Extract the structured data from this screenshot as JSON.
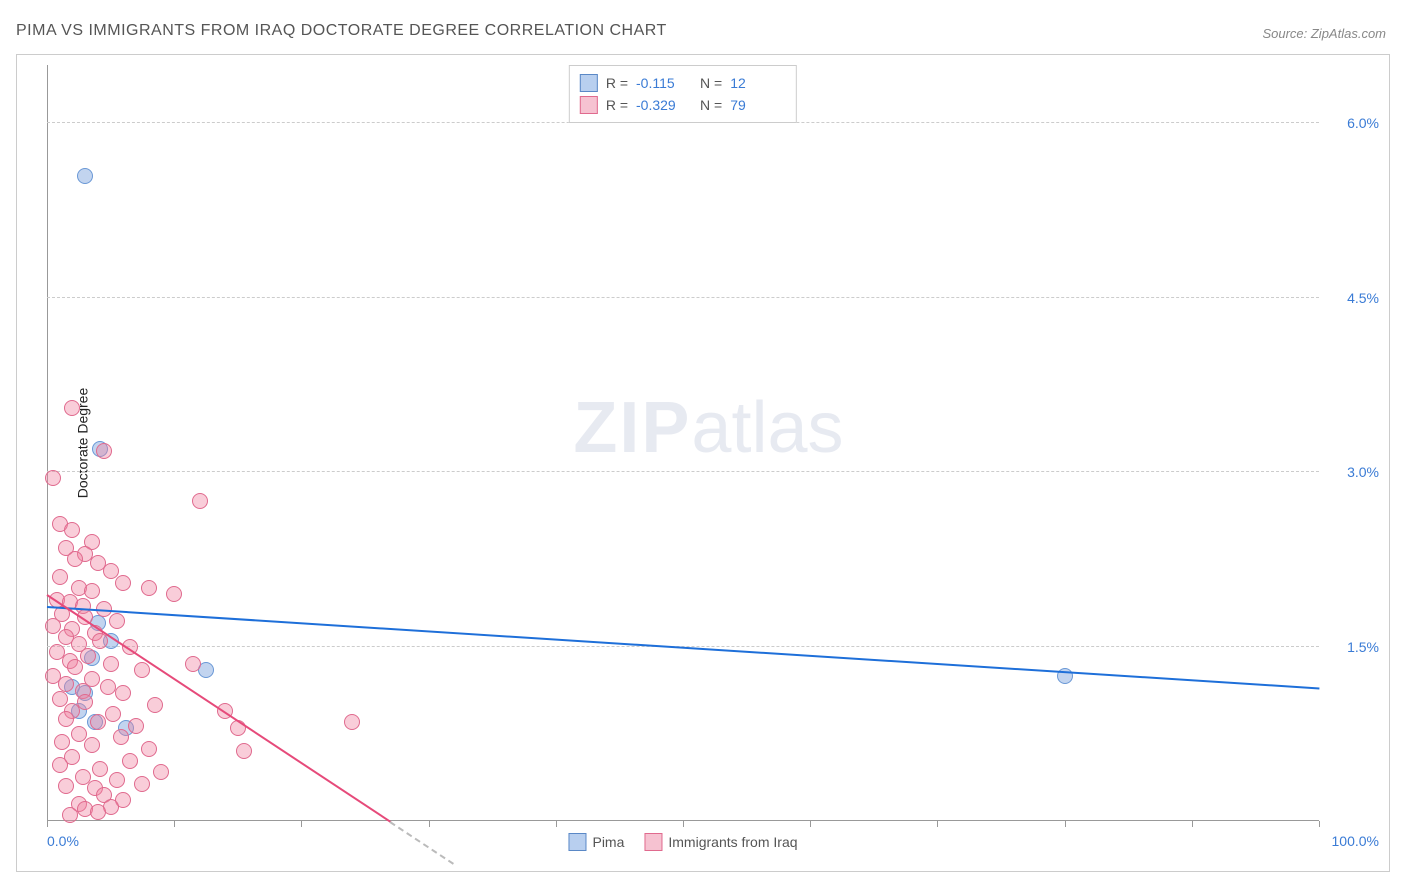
{
  "title": "PIMA VS IMMIGRANTS FROM IRAQ DOCTORATE DEGREE CORRELATION CHART",
  "source_label": "Source: ZipAtlas.com",
  "watermark": {
    "bold": "ZIP",
    "rest": "atlas"
  },
  "chart": {
    "type": "scatter",
    "y_label": "Doctorate Degree",
    "background_color": "#ffffff",
    "grid_color": "#cccccc",
    "grid_dash": true,
    "xlim": [
      0,
      100
    ],
    "ylim": [
      0,
      6.5
    ],
    "x_ticks_minor": [
      0,
      10,
      20,
      30,
      40,
      50,
      60,
      70,
      80,
      90,
      100
    ],
    "x_tick_labels": {
      "left": "0.0%",
      "right": "100.0%"
    },
    "y_ticks": [
      {
        "v": 1.5,
        "label": "1.5%"
      },
      {
        "v": 3.0,
        "label": "3.0%"
      },
      {
        "v": 4.5,
        "label": "4.5%"
      },
      {
        "v": 6.0,
        "label": "6.0%"
      }
    ],
    "y_tick_color": "#3a7bd5",
    "x_tick_color": "#3a7bd5",
    "point_radius": 8,
    "point_opacity": 0.55,
    "axis_color": "#999999"
  },
  "series": [
    {
      "key": "pima",
      "label": "Pima",
      "color_fill": "rgba(120,160,220,0.45)",
      "color_stroke": "#6a98d6",
      "swatch_fill": "#b8cfef",
      "swatch_stroke": "#5a88c6",
      "trend": {
        "x1": 0,
        "y1": 1.85,
        "x2": 100,
        "y2": 1.15,
        "color": "#1e6fd9",
        "width": 2
      },
      "R": "-0.115",
      "N": "12",
      "points": [
        {
          "x": 3.0,
          "y": 5.55
        },
        {
          "x": 4.2,
          "y": 3.2
        },
        {
          "x": 5.0,
          "y": 1.55
        },
        {
          "x": 2.0,
          "y": 1.15
        },
        {
          "x": 3.0,
          "y": 1.1
        },
        {
          "x": 3.8,
          "y": 0.85
        },
        {
          "x": 6.2,
          "y": 0.8
        },
        {
          "x": 12.5,
          "y": 1.3
        },
        {
          "x": 2.5,
          "y": 0.95
        },
        {
          "x": 4.0,
          "y": 1.7
        },
        {
          "x": 80.0,
          "y": 1.25
        },
        {
          "x": 3.5,
          "y": 1.4
        }
      ]
    },
    {
      "key": "iraq",
      "label": "Immigrants from Iraq",
      "color_fill": "rgba(240,130,160,0.40)",
      "color_stroke": "#e06a8e",
      "swatch_fill": "#f6c2d1",
      "swatch_stroke": "#e06a8e",
      "trend": {
        "x1": 0,
        "y1": 1.95,
        "x2": 27,
        "y2": 0.0,
        "color": "#e64a7a",
        "width": 2,
        "dash_to_x": 32
      },
      "R": "-0.329",
      "N": "79",
      "points": [
        {
          "x": 2.0,
          "y": 3.55
        },
        {
          "x": 0.5,
          "y": 2.95
        },
        {
          "x": 4.5,
          "y": 3.18
        },
        {
          "x": 12.0,
          "y": 2.75
        },
        {
          "x": 1.0,
          "y": 2.55
        },
        {
          "x": 2.0,
          "y": 2.5
        },
        {
          "x": 3.5,
          "y": 2.4
        },
        {
          "x": 1.5,
          "y": 2.35
        },
        {
          "x": 3.0,
          "y": 2.3
        },
        {
          "x": 2.2,
          "y": 2.25
        },
        {
          "x": 4.0,
          "y": 2.22
        },
        {
          "x": 5.0,
          "y": 2.15
        },
        {
          "x": 1.0,
          "y": 2.1
        },
        {
          "x": 6.0,
          "y": 2.05
        },
        {
          "x": 2.5,
          "y": 2.0
        },
        {
          "x": 3.5,
          "y": 1.98
        },
        {
          "x": 8.0,
          "y": 2.0
        },
        {
          "x": 10.0,
          "y": 1.95
        },
        {
          "x": 0.8,
          "y": 1.9
        },
        {
          "x": 1.8,
          "y": 1.88
        },
        {
          "x": 2.8,
          "y": 1.85
        },
        {
          "x": 4.5,
          "y": 1.82
        },
        {
          "x": 1.2,
          "y": 1.78
        },
        {
          "x": 3.0,
          "y": 1.75
        },
        {
          "x": 5.5,
          "y": 1.72
        },
        {
          "x": 0.5,
          "y": 1.68
        },
        {
          "x": 2.0,
          "y": 1.65
        },
        {
          "x": 3.8,
          "y": 1.62
        },
        {
          "x": 1.5,
          "y": 1.58
        },
        {
          "x": 4.2,
          "y": 1.55
        },
        {
          "x": 2.5,
          "y": 1.52
        },
        {
          "x": 6.5,
          "y": 1.5
        },
        {
          "x": 0.8,
          "y": 1.45
        },
        {
          "x": 3.2,
          "y": 1.42
        },
        {
          "x": 1.8,
          "y": 1.38
        },
        {
          "x": 5.0,
          "y": 1.35
        },
        {
          "x": 2.2,
          "y": 1.32
        },
        {
          "x": 7.5,
          "y": 1.3
        },
        {
          "x": 11.5,
          "y": 1.35
        },
        {
          "x": 0.5,
          "y": 1.25
        },
        {
          "x": 3.5,
          "y": 1.22
        },
        {
          "x": 1.5,
          "y": 1.18
        },
        {
          "x": 4.8,
          "y": 1.15
        },
        {
          "x": 2.8,
          "y": 1.12
        },
        {
          "x": 6.0,
          "y": 1.1
        },
        {
          "x": 1.0,
          "y": 1.05
        },
        {
          "x": 3.0,
          "y": 1.02
        },
        {
          "x": 8.5,
          "y": 1.0
        },
        {
          "x": 2.0,
          "y": 0.95
        },
        {
          "x": 5.2,
          "y": 0.92
        },
        {
          "x": 1.5,
          "y": 0.88
        },
        {
          "x": 4.0,
          "y": 0.85
        },
        {
          "x": 7.0,
          "y": 0.82
        },
        {
          "x": 14.0,
          "y": 0.95
        },
        {
          "x": 15.0,
          "y": 0.8
        },
        {
          "x": 15.5,
          "y": 0.6
        },
        {
          "x": 2.5,
          "y": 0.75
        },
        {
          "x": 5.8,
          "y": 0.72
        },
        {
          "x": 1.2,
          "y": 0.68
        },
        {
          "x": 3.5,
          "y": 0.65
        },
        {
          "x": 8.0,
          "y": 0.62
        },
        {
          "x": 24.0,
          "y": 0.85
        },
        {
          "x": 2.0,
          "y": 0.55
        },
        {
          "x": 6.5,
          "y": 0.52
        },
        {
          "x": 1.0,
          "y": 0.48
        },
        {
          "x": 4.2,
          "y": 0.45
        },
        {
          "x": 9.0,
          "y": 0.42
        },
        {
          "x": 2.8,
          "y": 0.38
        },
        {
          "x": 5.5,
          "y": 0.35
        },
        {
          "x": 1.5,
          "y": 0.3
        },
        {
          "x": 3.8,
          "y": 0.28
        },
        {
          "x": 7.5,
          "y": 0.32
        },
        {
          "x": 4.5,
          "y": 0.22
        },
        {
          "x": 6.0,
          "y": 0.18
        },
        {
          "x": 2.5,
          "y": 0.15
        },
        {
          "x": 5.0,
          "y": 0.12
        },
        {
          "x": 3.0,
          "y": 0.1
        },
        {
          "x": 4.0,
          "y": 0.08
        },
        {
          "x": 1.8,
          "y": 0.05
        }
      ]
    }
  ],
  "legend_top": {
    "R_label": "R =",
    "N_label": "N ="
  },
  "legend_bottom": {
    "items": [
      "pima",
      "iraq"
    ]
  }
}
